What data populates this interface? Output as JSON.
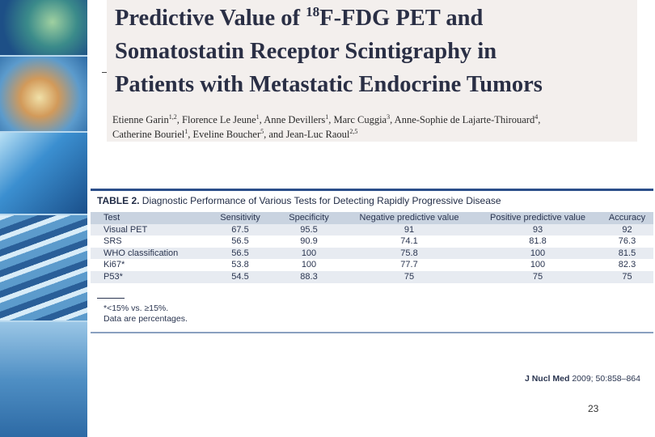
{
  "paper": {
    "title": {
      "line1_pre": "Predictive Value of ",
      "line1_sup": "18",
      "line1_post": "F-FDG PET and",
      "line2": "Somatostatin Receptor Scintigraphy in",
      "line3": "Patients with Metastatic Endocrine Tumors"
    },
    "authors": [
      {
        "name": "Etienne Garin",
        "affil": "1,2"
      },
      {
        "name": "Florence Le Jeune",
        "affil": "1"
      },
      {
        "name": "Anne Devillers",
        "affil": "1"
      },
      {
        "name": "Marc Cuggia",
        "affil": "3"
      },
      {
        "name": "Anne-Sophie de Lajarte-Thirouard",
        "affil": "4"
      },
      {
        "name": "Catherine Bouriel",
        "affil": "1"
      },
      {
        "name": "Eveline Boucher",
        "affil": "5"
      },
      {
        "name": "Jean-Luc Raoul",
        "affil": "2,5"
      }
    ],
    "author_separator": ", ",
    "author_conjunction": "and "
  },
  "table": {
    "label": "TABLE 2.",
    "caption": "Diagnostic Performance of Various Tests for Detecting Rapidly Progressive Disease",
    "header": [
      "Test",
      "Sensitivity",
      "Specificity",
      "Negative predictive value",
      "Positive predictive value",
      "Accuracy"
    ],
    "rows": [
      [
        "Visual PET",
        "67.5",
        "95.5",
        "91",
        "93",
        "92"
      ],
      [
        "SRS",
        "56.5",
        "90.9",
        "74.1",
        "81.8",
        "76.3"
      ],
      [
        "WHO classification",
        "56.5",
        "100",
        "75.8",
        "100",
        "81.5"
      ],
      [
        "Ki67*",
        "53.8",
        "100",
        "77.7",
        "100",
        "82.3"
      ],
      [
        "P53*",
        "54.5",
        "88.3",
        "75",
        "75",
        "75"
      ]
    ],
    "footnotes": [
      "*<15% vs. ≥15%.",
      "Data are percentages."
    ]
  },
  "citation": {
    "journal": "J Nucl Med",
    "rest": " 2009; 50:858–864"
  },
  "page_number": "23"
}
